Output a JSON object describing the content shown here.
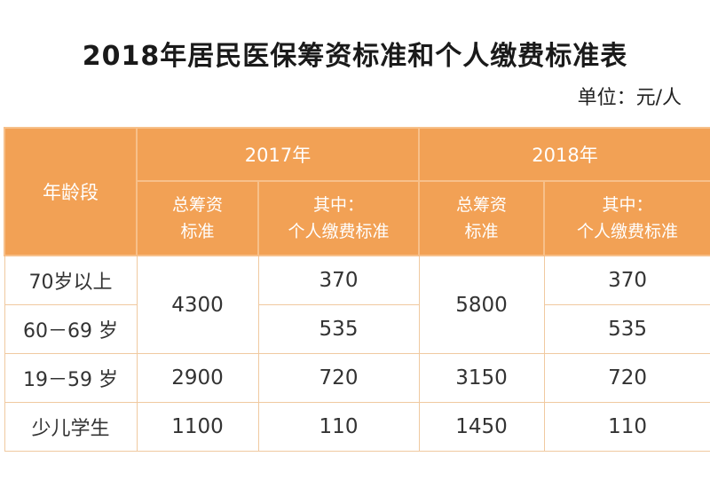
{
  "title": "2018年居民医保筹资标准和个人缴费标准表",
  "unit": "单位：元/人",
  "table": {
    "age_header": "年龄段",
    "years": [
      "2017年",
      "2018年"
    ],
    "sub_headers": {
      "total_line1": "总筹资",
      "total_line2": "标准",
      "personal_line1": "其中：",
      "personal_line2": "个人缴费标准"
    },
    "rows": [
      {
        "age": "70岁以上",
        "personal_2017": "370",
        "personal_2018": "370"
      },
      {
        "age": "60－69 岁",
        "personal_2017": "535",
        "personal_2018": "535"
      },
      {
        "age": "19－59 岁",
        "total_2017": "2900",
        "personal_2017": "720",
        "total_2018": "3150",
        "personal_2018": "720"
      },
      {
        "age": "少儿学生",
        "total_2017": "1100",
        "personal_2017": "110",
        "total_2018": "1450",
        "personal_2018": "110"
      }
    ],
    "merged_total_60plus": {
      "y2017": "4300",
      "y2018": "5800"
    }
  }
}
